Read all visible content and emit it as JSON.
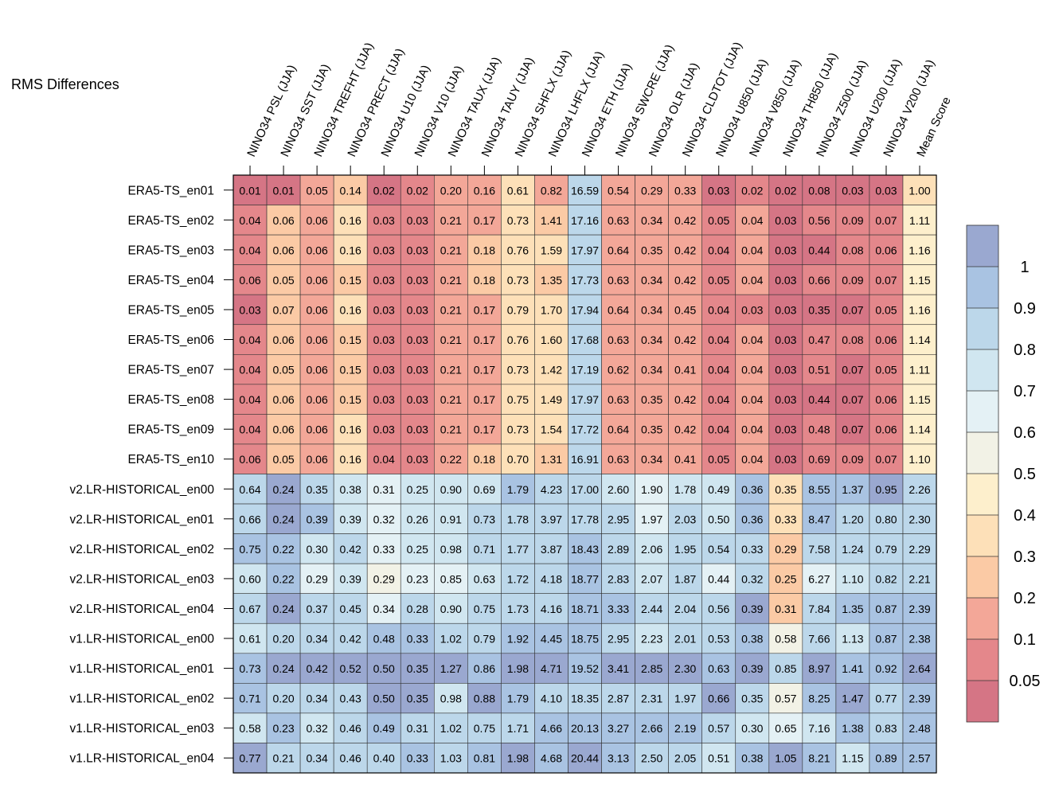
{
  "chart_data": {
    "type": "heatmap",
    "title": "RMS Differences",
    "columns": [
      "NINO34 PSL (JJA)",
      "NINO34 SST (JJA)",
      "NINO34 TREFHT (JJA)",
      "NINO34 PRECT (JJA)",
      "NINO34 U10 (JJA)",
      "NINO34 V10 (JJA)",
      "NINO34 TAUX (JJA)",
      "NINO34 TAUY (JJA)",
      "NINO34 SHFLX (JJA)",
      "NINO34 LHFLX (JJA)",
      "NINO34 ETH (JJA)",
      "NINO34 SWCRE (JJA)",
      "NINO34 OLR (JJA)",
      "NINO34 CLDTOT (JJA)",
      "NINO34 U850 (JJA)",
      "NINO34 V850 (JJA)",
      "NINO34 TH850 (JJA)",
      "NINO34 Z500 (JJA)",
      "NINO34 U200 (JJA)",
      "NINO34 V200 (JJA)",
      "Mean Score"
    ],
    "rows": [
      "ERA5-TS_en01",
      "ERA5-TS_en02",
      "ERA5-TS_en03",
      "ERA5-TS_en04",
      "ERA5-TS_en05",
      "ERA5-TS_en06",
      "ERA5-TS_en07",
      "ERA5-TS_en08",
      "ERA5-TS_en09",
      "ERA5-TS_en10",
      "v2.LR-HISTORICAL_en00",
      "v2.LR-HISTORICAL_en01",
      "v2.LR-HISTORICAL_en02",
      "v2.LR-HISTORICAL_en03",
      "v2.LR-HISTORICAL_en04",
      "v1.LR-HISTORICAL_en00",
      "v1.LR-HISTORICAL_en01",
      "v1.LR-HISTORICAL_en02",
      "v1.LR-HISTORICAL_en03",
      "v1.LR-HISTORICAL_en04"
    ],
    "values": [
      [
        "0.01",
        "0.01",
        "0.05",
        "0.14",
        "0.02",
        "0.02",
        "0.20",
        "0.16",
        "0.61",
        "0.82",
        "16.59",
        "0.54",
        "0.29",
        "0.33",
        "0.03",
        "0.02",
        "0.02",
        "0.08",
        "0.03",
        "0.03",
        "1.00"
      ],
      [
        "0.04",
        "0.06",
        "0.06",
        "0.16",
        "0.03",
        "0.03",
        "0.21",
        "0.17",
        "0.73",
        "1.41",
        "17.16",
        "0.63",
        "0.34",
        "0.42",
        "0.05",
        "0.04",
        "0.03",
        "0.56",
        "0.09",
        "0.07",
        "1.11"
      ],
      [
        "0.04",
        "0.06",
        "0.06",
        "0.16",
        "0.03",
        "0.03",
        "0.21",
        "0.18",
        "0.76",
        "1.59",
        "17.97",
        "0.64",
        "0.35",
        "0.42",
        "0.04",
        "0.04",
        "0.03",
        "0.44",
        "0.08",
        "0.06",
        "1.16"
      ],
      [
        "0.06",
        "0.05",
        "0.06",
        "0.15",
        "0.03",
        "0.03",
        "0.21",
        "0.18",
        "0.73",
        "1.35",
        "17.73",
        "0.63",
        "0.34",
        "0.42",
        "0.05",
        "0.04",
        "0.03",
        "0.66",
        "0.09",
        "0.07",
        "1.15"
      ],
      [
        "0.03",
        "0.07",
        "0.06",
        "0.16",
        "0.03",
        "0.03",
        "0.21",
        "0.17",
        "0.79",
        "1.70",
        "17.94",
        "0.64",
        "0.34",
        "0.45",
        "0.04",
        "0.03",
        "0.03",
        "0.35",
        "0.07",
        "0.05",
        "1.16"
      ],
      [
        "0.04",
        "0.06",
        "0.06",
        "0.15",
        "0.03",
        "0.03",
        "0.21",
        "0.17",
        "0.76",
        "1.60",
        "17.68",
        "0.63",
        "0.34",
        "0.42",
        "0.04",
        "0.04",
        "0.03",
        "0.47",
        "0.08",
        "0.06",
        "1.14"
      ],
      [
        "0.04",
        "0.05",
        "0.06",
        "0.15",
        "0.03",
        "0.03",
        "0.21",
        "0.17",
        "0.73",
        "1.42",
        "17.19",
        "0.62",
        "0.34",
        "0.41",
        "0.04",
        "0.04",
        "0.03",
        "0.51",
        "0.07",
        "0.05",
        "1.11"
      ],
      [
        "0.04",
        "0.06",
        "0.06",
        "0.15",
        "0.03",
        "0.03",
        "0.21",
        "0.17",
        "0.75",
        "1.49",
        "17.97",
        "0.63",
        "0.35",
        "0.42",
        "0.04",
        "0.04",
        "0.03",
        "0.44",
        "0.07",
        "0.06",
        "1.15"
      ],
      [
        "0.04",
        "0.06",
        "0.06",
        "0.16",
        "0.03",
        "0.03",
        "0.21",
        "0.17",
        "0.73",
        "1.54",
        "17.72",
        "0.64",
        "0.35",
        "0.42",
        "0.04",
        "0.04",
        "0.03",
        "0.48",
        "0.07",
        "0.06",
        "1.14"
      ],
      [
        "0.06",
        "0.05",
        "0.06",
        "0.16",
        "0.04",
        "0.03",
        "0.22",
        "0.18",
        "0.70",
        "1.31",
        "16.91",
        "0.63",
        "0.34",
        "0.41",
        "0.05",
        "0.04",
        "0.03",
        "0.69",
        "0.09",
        "0.07",
        "1.10"
      ],
      [
        "0.64",
        "0.24",
        "0.35",
        "0.38",
        "0.31",
        "0.25",
        "0.90",
        "0.69",
        "1.79",
        "4.23",
        "17.00",
        "2.60",
        "1.90",
        "1.78",
        "0.49",
        "0.36",
        "0.35",
        "8.55",
        "1.37",
        "0.95",
        "2.26"
      ],
      [
        "0.66",
        "0.24",
        "0.39",
        "0.39",
        "0.32",
        "0.26",
        "0.91",
        "0.73",
        "1.78",
        "3.97",
        "17.78",
        "2.95",
        "1.97",
        "2.03",
        "0.50",
        "0.36",
        "0.33",
        "8.47",
        "1.20",
        "0.80",
        "2.30"
      ],
      [
        "0.75",
        "0.22",
        "0.30",
        "0.42",
        "0.33",
        "0.25",
        "0.98",
        "0.71",
        "1.77",
        "3.87",
        "18.43",
        "2.89",
        "2.06",
        "1.95",
        "0.54",
        "0.33",
        "0.29",
        "7.58",
        "1.24",
        "0.79",
        "2.29"
      ],
      [
        "0.60",
        "0.22",
        "0.29",
        "0.39",
        "0.29",
        "0.23",
        "0.85",
        "0.63",
        "1.72",
        "4.18",
        "18.77",
        "2.83",
        "2.07",
        "1.87",
        "0.44",
        "0.32",
        "0.25",
        "6.27",
        "1.10",
        "0.82",
        "2.21"
      ],
      [
        "0.67",
        "0.24",
        "0.37",
        "0.45",
        "0.34",
        "0.28",
        "0.90",
        "0.75",
        "1.73",
        "4.16",
        "18.71",
        "3.33",
        "2.44",
        "2.04",
        "0.56",
        "0.39",
        "0.31",
        "7.84",
        "1.35",
        "0.87",
        "2.39"
      ],
      [
        "0.61",
        "0.20",
        "0.34",
        "0.42",
        "0.48",
        "0.33",
        "1.02",
        "0.79",
        "1.92",
        "4.45",
        "18.75",
        "2.95",
        "2.23",
        "2.01",
        "0.53",
        "0.38",
        "0.58",
        "7.66",
        "1.13",
        "0.87",
        "2.38"
      ],
      [
        "0.73",
        "0.24",
        "0.42",
        "0.52",
        "0.50",
        "0.35",
        "1.27",
        "0.86",
        "1.98",
        "4.71",
        "19.52",
        "3.41",
        "2.85",
        "2.30",
        "0.63",
        "0.39",
        "0.85",
        "8.97",
        "1.41",
        "0.92",
        "2.64"
      ],
      [
        "0.71",
        "0.20",
        "0.34",
        "0.43",
        "0.50",
        "0.35",
        "0.98",
        "0.88",
        "1.79",
        "4.10",
        "18.35",
        "2.87",
        "2.31",
        "1.97",
        "0.66",
        "0.35",
        "0.57",
        "8.25",
        "1.47",
        "0.77",
        "2.39"
      ],
      [
        "0.58",
        "0.23",
        "0.32",
        "0.46",
        "0.49",
        "0.31",
        "1.02",
        "0.75",
        "1.71",
        "4.66",
        "20.13",
        "3.27",
        "2.66",
        "2.19",
        "0.57",
        "0.30",
        "0.65",
        "7.16",
        "1.38",
        "0.83",
        "2.48"
      ],
      [
        "0.77",
        "0.21",
        "0.34",
        "0.46",
        "0.40",
        "0.33",
        "1.03",
        "0.81",
        "1.98",
        "4.68",
        "20.44",
        "3.13",
        "2.50",
        "2.05",
        "0.51",
        "0.38",
        "1.05",
        "8.21",
        "1.15",
        "0.89",
        "2.57"
      ]
    ],
    "colorbar": {
      "tick_labels": [
        "1",
        "0.9",
        "0.8",
        "0.7",
        "0.6",
        "0.5",
        "0.4",
        "0.3",
        "0.2",
        "0.1",
        "0.05"
      ],
      "colors_top_to_bottom": [
        "#9aa8d0",
        "#a9c3e2",
        "#bcd7ea",
        "#d0e6f0",
        "#e4f1f5",
        "#f2f2e6",
        "#fdefcc",
        "#fde0b8",
        "#fbcaa5",
        "#f3a798",
        "#e4878b",
        "#d57585"
      ]
    },
    "color_scale_note": "cell color = value normalized by column (ERA5-TS_en01 row = 1.00)"
  }
}
